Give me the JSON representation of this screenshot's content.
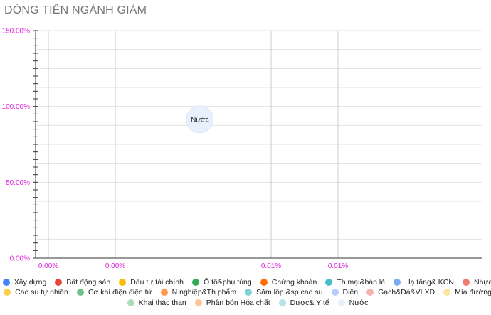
{
  "header": {
    "title": "DÒNG TIỀN NGÀNH GIẢM"
  },
  "chart_data": {
    "type": "scatter",
    "title": "DÒNG TIỀN NGÀNH GIẢM",
    "xlabel": "",
    "ylabel": "",
    "x_ticks": [
      "0.00%",
      "0.00%",
      "0.01%",
      "0.01%"
    ],
    "y_ticks": [
      "0.00%",
      "50.00%",
      "100.00%",
      "150.00%"
    ],
    "ylim": [
      0,
      150
    ],
    "grid": true,
    "legend_position": "bottom",
    "points": [
      {
        "label": "Nước",
        "x": 0.0068,
        "y": 91.5
      }
    ],
    "series": [
      {
        "name": "Xây dựng",
        "color": "#4285f4"
      },
      {
        "name": "Bất động sản",
        "color": "#ea4335"
      },
      {
        "name": "Đầu tư tài chính",
        "color": "#fbbc04"
      },
      {
        "name": "Ô tô&phụ tùng",
        "color": "#34a853"
      },
      {
        "name": "Chứng khoán",
        "color": "#ff6d01"
      },
      {
        "name": "Th.mại&bán lẻ",
        "color": "#46bdc6"
      },
      {
        "name": "Hạ tầng& KCN",
        "color": "#7baaf7"
      },
      {
        "name": "Nhựa",
        "color": "#f07b72"
      },
      {
        "name": "Cao su tự nhiên",
        "color": "#fcd04f"
      },
      {
        "name": "Cơ khí điện điện tử",
        "color": "#71c287"
      },
      {
        "name": "N.nghiệp&Th.phẩm",
        "color": "#ff994d"
      },
      {
        "name": "Săm lốp &sp cao su",
        "color": "#7ed1d7"
      },
      {
        "name": "Điện",
        "color": "#b3cefb"
      },
      {
        "name": "Gạch&Đá&VLXD",
        "color": "#f7b4ae"
      },
      {
        "name": "Mía đường",
        "color": "#fde49b"
      },
      {
        "name": "Khai thác than",
        "color": "#aedcba"
      },
      {
        "name": "Phân bón Hóa chất",
        "color": "#ffc599"
      },
      {
        "name": "Dược& Y tế",
        "color": "#b5e5e8"
      },
      {
        "name": "Nước",
        "color": "#e8f0fe"
      }
    ]
  }
}
